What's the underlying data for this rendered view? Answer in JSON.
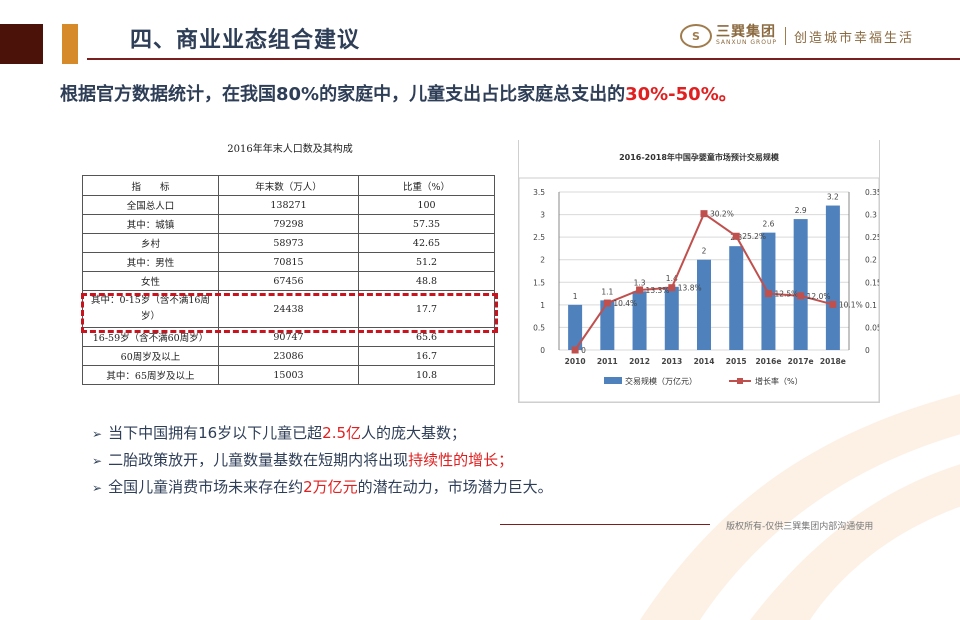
{
  "header": {
    "title": "四、商业业态组合建议",
    "logo": {
      "name_cn": "三巽集团",
      "name_en": "SANXUN GROUP",
      "slogan": "创造城市幸福生活"
    }
  },
  "lead": {
    "text": "根据官方数据统计，在我国80%的家庭中，儿童支出占比家庭总支出的",
    "highlight": "30%-50%。"
  },
  "population_table": {
    "title": "2016年年末人口数及其构成",
    "headers": [
      "指　　标",
      "年末数（万人）",
      "比重（%）"
    ],
    "rows": [
      [
        "全国总人口",
        "138271",
        "100"
      ],
      [
        "其中：城镇",
        "79298",
        "57.35"
      ],
      [
        "乡村",
        "58973",
        "42.65"
      ],
      [
        "其中：男性",
        "70815",
        "51.2"
      ],
      [
        "女性",
        "67456",
        "48.8"
      ],
      [
        "其中：0-15岁（含不满16周岁）",
        "24438",
        "17.7"
      ],
      [
        "16-59岁（含不满60周岁）",
        "90747",
        "65.6"
      ],
      [
        "60周岁及以上",
        "23086",
        "16.7"
      ],
      [
        "其中：65周岁及以上",
        "15003",
        "10.8"
      ]
    ],
    "highlighted_row": 5
  },
  "chart_data": {
    "type": "bar",
    "title": "2016-2018年中国孕婴童市场预计交易规模",
    "categories": [
      "2010",
      "2011",
      "2012",
      "2013",
      "2014",
      "2015",
      "2016e",
      "2017e",
      "2018e"
    ],
    "series": [
      {
        "name": "交易规模（万亿元）",
        "type": "bar",
        "axis": "left",
        "color": "#4f81bd",
        "values": [
          1,
          1.1,
          1.3,
          1.4,
          2,
          2.3,
          2.6,
          2.9,
          3.2
        ],
        "labels": [
          "1",
          "1.1",
          "1.3",
          "1.4",
          "2",
          "2.3",
          "2.6",
          "2.9",
          "3.2"
        ]
      },
      {
        "name": "增长率（%）",
        "type": "line",
        "axis": "right",
        "color": "#c0504d",
        "values": [
          0,
          0.104,
          0.133,
          0.138,
          0.302,
          0.252,
          0.125,
          0.12,
          0.101
        ],
        "labels": [
          "0",
          "10.4%",
          "13.3%",
          "13.8%",
          "30.2%",
          "25.2%",
          "12.5%",
          "12.0%",
          "10.1%"
        ]
      }
    ],
    "yleft": {
      "min": 0,
      "max": 3.5,
      "ticks": [
        "0",
        "0.5",
        "1",
        "1.5",
        "2",
        "2.5",
        "3",
        "3.5"
      ]
    },
    "yright": {
      "min": 0,
      "max": 0.35,
      "ticks": [
        "0",
        "0.05",
        "0.1",
        "0.15",
        "0.2",
        "0.25",
        "0.3",
        "0.35"
      ]
    },
    "grid": true,
    "legend_position": "bottom"
  },
  "bullets": [
    {
      "pre": "当下中国拥有16岁以下儿童已超",
      "hl": "2.5亿",
      "post": "人的庞大基数；"
    },
    {
      "pre": "二胎政策放开，儿童数量基数在短期内将出现",
      "hl": "持续性的增长；",
      "post": ""
    },
    {
      "pre": "全国儿童消费市场未来存在约",
      "hl": "2万亿元",
      "post": "的潜在动力，市场潜力巨大。"
    }
  ],
  "footer": {
    "text": "版权所有-仅供三巽集团内部沟通使用"
  }
}
